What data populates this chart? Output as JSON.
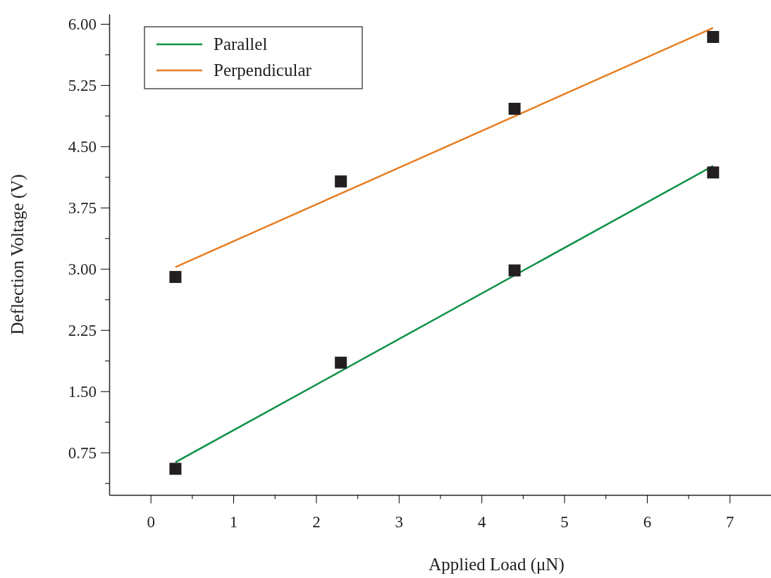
{
  "chart_data": {
    "type": "scatter",
    "xlabel": "Applied Load (μN)",
    "ylabel": "Deflection Voltage (V)",
    "xlim": [
      -0.5,
      7.5
    ],
    "ylim": [
      0.23,
      6.12
    ],
    "xticks": [
      0,
      {
        "value": 0.5,
        "label": null
      },
      1,
      {
        "value": 1.5,
        "label": null
      },
      2,
      {
        "value": 2.5,
        "label": null
      },
      3,
      {
        "value": 3.5,
        "label": null
      },
      4,
      {
        "value": 4.5,
        "label": null
      },
      5,
      {
        "value": 5.5,
        "label": null
      },
      6,
      {
        "value": 6.5,
        "label": null
      },
      7
    ],
    "yticks": [
      {
        "value": 0.375,
        "label": null
      },
      {
        "value": 0.75,
        "label": "0.75"
      },
      {
        "value": 1.125,
        "label": null
      },
      {
        "value": 1.5,
        "label": "1.50"
      },
      {
        "value": 1.875,
        "label": null
      },
      {
        "value": 2.25,
        "label": "2.25"
      },
      {
        "value": 2.625,
        "label": null
      },
      {
        "value": 3,
        "label": "3.00"
      },
      {
        "value": 3.375,
        "label": null
      },
      {
        "value": 3.75,
        "label": "3.75"
      },
      {
        "value": 4.125,
        "label": null
      },
      {
        "value": 4.5,
        "label": "4.50"
      },
      {
        "value": 4.875,
        "label": null
      },
      {
        "value": 5.25,
        "label": "5.25"
      },
      {
        "value": 5.625,
        "label": null
      },
      {
        "value": 6,
        "label": "6.00"
      }
    ],
    "grid": false,
    "legend": "top left",
    "series": [
      {
        "type": "line",
        "marker": "none",
        "name": "Parallel",
        "color": "#0f9146",
        "x": [
          0.3,
          6.8
        ],
        "values": [
          0.63,
          4.26
        ]
      },
      {
        "type": "line",
        "marker": "none",
        "name": "Perpendicular",
        "color": "#e67e22",
        "x": [
          0.3,
          6.8
        ],
        "values": [
          3.02,
          5.95
        ]
      },
      {
        "marker": "square",
        "color": "#231f20",
        "x": [
          0.3,
          2.3,
          4.4,
          6.8
        ],
        "values": [
          0.55,
          1.85,
          2.98,
          4.18
        ]
      },
      {
        "marker": "square",
        "color": "#231f20",
        "x": [
          0.3,
          2.3,
          4.4,
          6.8
        ],
        "values": [
          2.9,
          4.07,
          4.96,
          5.84
        ]
      }
    ]
  }
}
